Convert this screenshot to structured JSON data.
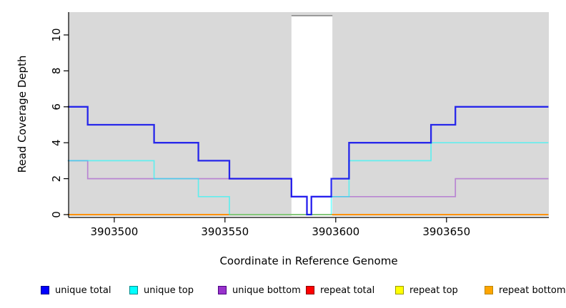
{
  "chart_data": {
    "type": "line",
    "subtype": "step",
    "title": "",
    "xlabel": "Coordinate in Reference Genome",
    "ylabel": "Read Coverage Depth",
    "xlim": [
      3903479,
      3903696
    ],
    "ylim": [
      0,
      11.3
    ],
    "x_ticks": [
      3903500,
      3903550,
      3903600,
      3903650
    ],
    "y_ticks": [
      0,
      2,
      4,
      6,
      8,
      10
    ],
    "grid": false,
    "legend_position": "bottom",
    "panel_background": "#d9d9d9",
    "axis_color": "#000000",
    "masked_region": {
      "start": 3903580,
      "end": 3903598.5,
      "top": 11.07,
      "fill": "#ffffff",
      "border": "#808080"
    },
    "x_end": 3903696,
    "series": [
      {
        "name": "repeat total",
        "color": "#dd0000",
        "width": 1.5,
        "opacity": 1,
        "steps": [
          [
            3903479,
            0
          ]
        ]
      },
      {
        "name": "repeat top",
        "color": "#ffff00",
        "width": 1.5,
        "opacity": 1,
        "steps": [
          [
            3903479,
            0
          ]
        ]
      },
      {
        "name": "repeat bottom",
        "color": "#ff9100",
        "width": 2,
        "opacity": 1,
        "steps": [
          [
            3903479,
            0
          ]
        ]
      },
      {
        "name": "unique bottom",
        "color": "#9932cc",
        "width": 1.7,
        "opacity": 0.5,
        "steps": [
          [
            3903479,
            3
          ],
          [
            3903488,
            2
          ],
          [
            3903580,
            1
          ],
          [
            3903587,
            0
          ],
          [
            3903589,
            1
          ],
          [
            3903654,
            2
          ]
        ]
      },
      {
        "name": "unique top",
        "color": "#00ffff",
        "width": 1.7,
        "opacity": 0.55,
        "steps": [
          [
            3903479,
            3
          ],
          [
            3903518,
            2
          ],
          [
            3903538,
            1
          ],
          [
            3903552,
            0
          ],
          [
            3903598,
            1
          ],
          [
            3903606,
            3
          ],
          [
            3903643,
            4
          ]
        ]
      },
      {
        "name": "unique total",
        "color": "#0000ee",
        "width": 2.3,
        "opacity": 0.82,
        "steps": [
          [
            3903479,
            6
          ],
          [
            3903488,
            5
          ],
          [
            3903518,
            4
          ],
          [
            3903538,
            3
          ],
          [
            3903552,
            2
          ],
          [
            3903580,
            1
          ],
          [
            3903587,
            0
          ],
          [
            3903589,
            1
          ],
          [
            3903598,
            2
          ],
          [
            3903606,
            4
          ],
          [
            3903643,
            5
          ],
          [
            3903654,
            6
          ]
        ]
      }
    ],
    "legend": [
      {
        "label": "unique total",
        "fill": "#0000ff",
        "border": "#00008b"
      },
      {
        "label": "unique top",
        "fill": "#00ffff",
        "border": "#008b8b"
      },
      {
        "label": "unique bottom",
        "fill": "#9932cc",
        "border": "#4b0082"
      },
      {
        "label": "repeat total",
        "fill": "#ff0000",
        "border": "#8b0000"
      },
      {
        "label": "repeat top",
        "fill": "#ffff00",
        "border": "#999900"
      },
      {
        "label": "repeat bottom",
        "fill": "#ffa500",
        "border": "#b8860b"
      }
    ]
  }
}
